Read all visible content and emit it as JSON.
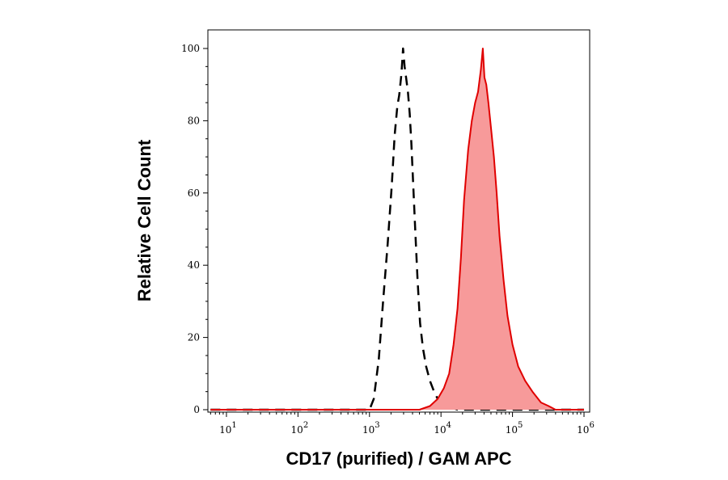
{
  "chart_data": {
    "type": "area",
    "xlabel": "CD17 (purified) / GAM APC",
    "ylabel": "Relative Cell Count",
    "x_scale": "log",
    "xlim": [
      5.5,
      1200000
    ],
    "ylim": [
      0,
      105
    ],
    "grid": false,
    "x_ticks": [
      {
        "value": 10,
        "base": "10",
        "exp": "1"
      },
      {
        "value": 100,
        "base": "10",
        "exp": "2"
      },
      {
        "value": 1000,
        "base": "10",
        "exp": "3"
      },
      {
        "value": 10000,
        "base": "10",
        "exp": "4"
      },
      {
        "value": 100000,
        "base": "10",
        "exp": "5"
      },
      {
        "value": 1000000,
        "base": "10",
        "exp": "6"
      }
    ],
    "y_ticks": [
      "0",
      "20",
      "40",
      "60",
      "80",
      "100"
    ],
    "series": [
      {
        "style": "dashed",
        "color": "#000000",
        "x": [
          6,
          600,
          1000,
          1150,
          1350,
          1550,
          1800,
          2050,
          2250,
          2450,
          2600,
          2800,
          2950,
          3100,
          3250,
          3450,
          3650,
          3850,
          4100,
          4400,
          4700,
          5100,
          5600,
          6200,
          7000,
          8000,
          9000,
          10500,
          12500,
          17000,
          100000,
          1000000
        ],
        "y": [
          0,
          0,
          0,
          3,
          14,
          30,
          46,
          62,
          76,
          84,
          87,
          93,
          100,
          95,
          92,
          88,
          82,
          74,
          62,
          48,
          36,
          24,
          17,
          12,
          8,
          5,
          3,
          2,
          1,
          0,
          0,
          0
        ]
      },
      {
        "style": "filled",
        "color": "#e00000",
        "fill": "#f79a9a",
        "x": [
          6,
          5000,
          7000,
          9000,
          11000,
          13000,
          15000,
          17000,
          19000,
          21000,
          24000,
          27000,
          30000,
          33000,
          36000,
          38500,
          40500,
          43000,
          46000,
          50000,
          55000,
          60000,
          66000,
          75000,
          85000,
          100000,
          120000,
          150000,
          190000,
          250000,
          320000,
          400000,
          1000000
        ],
        "y": [
          0,
          0,
          1,
          3,
          6,
          10,
          18,
          28,
          42,
          58,
          72,
          80,
          85,
          88,
          94,
          100,
          92,
          90,
          85,
          78,
          70,
          60,
          48,
          36,
          26,
          18,
          12,
          8,
          5,
          2,
          1,
          0,
          0
        ]
      }
    ]
  }
}
